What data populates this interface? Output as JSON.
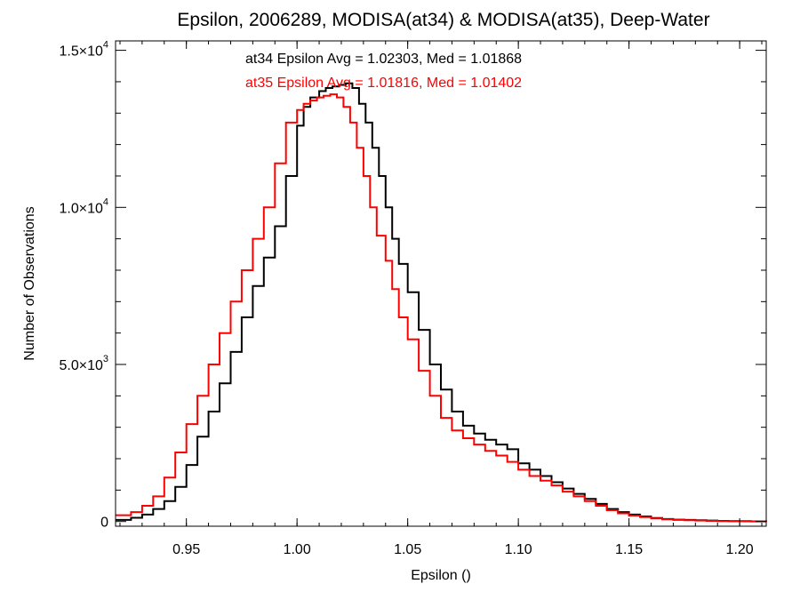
{
  "chart_data": {
    "type": "line",
    "title": "Epsilon, 2006289, MODISA(at34) & MODISA(at35), Deep-Water",
    "xlabel": "Epsilon ()",
    "ylabel": "Number of Observations",
    "xlim": [
      0.918,
      1.212
    ],
    "ylim": [
      -150,
      15300
    ],
    "grid": false,
    "x_ticks": [
      {
        "value": 0.95,
        "label": "0.95"
      },
      {
        "value": 1.0,
        "label": "1.00"
      },
      {
        "value": 1.05,
        "label": "1.05"
      },
      {
        "value": 1.1,
        "label": "1.10"
      },
      {
        "value": 1.15,
        "label": "1.15"
      },
      {
        "value": 1.2,
        "label": "1.20"
      }
    ],
    "y_ticks": [
      {
        "value": 0,
        "label": "0",
        "exp": ""
      },
      {
        "value": 5000,
        "label": "5.0×10",
        "exp": "3"
      },
      {
        "value": 10000,
        "label": "1.0×10",
        "exp": "4"
      },
      {
        "value": 15000,
        "label": "1.5×10",
        "exp": "4"
      }
    ],
    "annotations": [
      {
        "text": "at34 Epsilon Avg = 1.02303, Med = 1.01868",
        "color": "#000000"
      },
      {
        "text": "at35 Epsilon Avg = 1.01816, Med = 1.01402",
        "color": "#ff0000"
      }
    ],
    "series": [
      {
        "color": "#000000",
        "x": [
          0.918,
          0.925,
          0.93,
          0.935,
          0.94,
          0.945,
          0.95,
          0.955,
          0.96,
          0.965,
          0.97,
          0.975,
          0.98,
          0.985,
          0.99,
          0.995,
          1.0,
          1.003,
          1.006,
          1.01,
          1.013,
          1.016,
          1.019,
          1.022,
          1.025,
          1.028,
          1.031,
          1.034,
          1.037,
          1.04,
          1.043,
          1.046,
          1.05,
          1.055,
          1.06,
          1.065,
          1.07,
          1.075,
          1.08,
          1.085,
          1.09,
          1.095,
          1.1,
          1.105,
          1.11,
          1.115,
          1.12,
          1.125,
          1.13,
          1.135,
          1.14,
          1.145,
          1.15,
          1.155,
          1.16,
          1.165,
          1.17,
          1.175,
          1.18,
          1.185,
          1.19,
          1.195,
          1.2,
          1.205,
          1.212
        ],
        "y": [
          50,
          120,
          220,
          400,
          650,
          1100,
          1800,
          2700,
          3500,
          4400,
          5400,
          6500,
          7500,
          8400,
          9400,
          11000,
          12600,
          13200,
          13500,
          13700,
          13800,
          13850,
          13900,
          13950,
          13800,
          13300,
          12700,
          11900,
          11000,
          10000,
          9000,
          8200,
          7300,
          6100,
          5000,
          4200,
          3500,
          3050,
          2800,
          2600,
          2450,
          2300,
          1850,
          1650,
          1450,
          1250,
          1050,
          880,
          720,
          560,
          400,
          300,
          220,
          160,
          110,
          80,
          60,
          50,
          40,
          30,
          20,
          15,
          10,
          5,
          0
        ]
      },
      {
        "color": "#ff0000",
        "x": [
          0.918,
          0.925,
          0.93,
          0.935,
          0.94,
          0.945,
          0.95,
          0.955,
          0.96,
          0.965,
          0.97,
          0.975,
          0.98,
          0.985,
          0.99,
          0.995,
          1.0,
          1.003,
          1.006,
          1.009,
          1.012,
          1.015,
          1.018,
          1.021,
          1.024,
          1.027,
          1.03,
          1.033,
          1.036,
          1.04,
          1.043,
          1.046,
          1.05,
          1.055,
          1.06,
          1.065,
          1.07,
          1.075,
          1.08,
          1.085,
          1.09,
          1.095,
          1.1,
          1.105,
          1.11,
          1.115,
          1.12,
          1.125,
          1.13,
          1.135,
          1.14,
          1.145,
          1.15,
          1.155,
          1.16,
          1.165,
          1.17,
          1.175,
          1.18,
          1.185,
          1.19,
          1.195,
          1.2,
          1.205,
          1.212
        ],
        "y": [
          200,
          300,
          500,
          800,
          1400,
          2200,
          3100,
          4000,
          5000,
          6000,
          7000,
          8000,
          9000,
          10000,
          11400,
          12700,
          13100,
          13300,
          13400,
          13500,
          13550,
          13600,
          13500,
          13200,
          12700,
          11900,
          11000,
          10000,
          9100,
          8300,
          7400,
          6500,
          5800,
          4800,
          4000,
          3300,
          2900,
          2650,
          2450,
          2250,
          2100,
          1900,
          1650,
          1450,
          1300,
          1150,
          950,
          800,
          650,
          500,
          360,
          260,
          190,
          140,
          100,
          70,
          50,
          40,
          30,
          20,
          15,
          10,
          5,
          3,
          0
        ]
      }
    ]
  }
}
